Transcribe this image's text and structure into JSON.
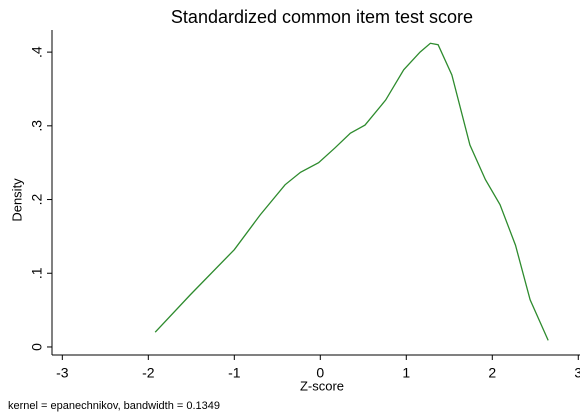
{
  "chart_data": {
    "type": "line",
    "title": "Standardized common item test score",
    "x_label": "Z-score",
    "y_label": "Density",
    "note": "kernel = epanechnikov, bandwidth = 0.1349",
    "x": [
      -1.92,
      -1.51,
      -1.0,
      -0.7,
      -0.41,
      -0.23,
      -0.02,
      0.17,
      0.35,
      0.52,
      0.76,
      0.97,
      1.16,
      1.28,
      1.37,
      1.53,
      1.74,
      1.92,
      2.09,
      2.27,
      2.44,
      2.65
    ],
    "series": [
      {
        "color": "#2e8b2e",
        "values": [
          0.02,
          0.071,
          0.132,
          0.179,
          0.22,
          0.237,
          0.25,
          0.27,
          0.29,
          0.301,
          0.335,
          0.376,
          0.4,
          0.412,
          0.41,
          0.369,
          0.274,
          0.227,
          0.193,
          0.138,
          0.064,
          0.009
        ]
      }
    ],
    "xlim": [
      -3.12,
      3.02
    ],
    "xticks": [
      -3,
      -2,
      -1,
      0,
      1,
      2,
      3
    ],
    "ylim": [
      -0.0109,
      0.43
    ],
    "yticks": [
      0,
      {
        "value": 0.1,
        "label": ".1"
      },
      {
        "value": 0.2,
        "label": ".2"
      },
      {
        "value": 0.3,
        "label": ".3"
      },
      {
        "value": 0.4,
        "label": ".4"
      }
    ]
  }
}
